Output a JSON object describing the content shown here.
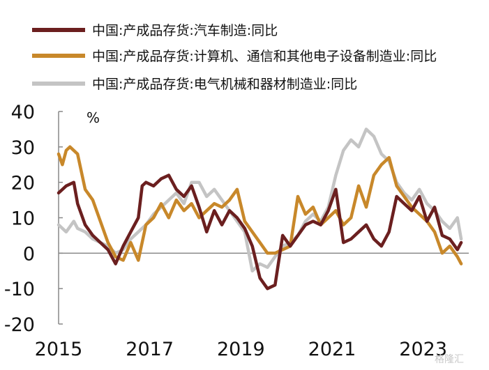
{
  "chart_data": {
    "type": "line",
    "unit_label": "%",
    "ylim": [
      -20,
      40
    ],
    "yticks": [
      -20,
      -10,
      0,
      10,
      20,
      30,
      40
    ],
    "xticks": [
      "2015",
      "2017",
      "2019",
      "2021",
      "2023"
    ],
    "grid": false,
    "legend_position": "top",
    "watermark": "格隆汇",
    "series": [
      {
        "name": "中国:产成品存货:汽车制造:同比",
        "color": "#6b1f1f",
        "points": [
          [
            "2015-01",
            17
          ],
          [
            "2015-03",
            19
          ],
          [
            "2015-05",
            20
          ],
          [
            "2015-06",
            14
          ],
          [
            "2015-08",
            8
          ],
          [
            "2015-10",
            5
          ],
          [
            "2015-12",
            3
          ],
          [
            "2016-02",
            1
          ],
          [
            "2016-04",
            -3
          ],
          [
            "2016-06",
            2
          ],
          [
            "2016-08",
            6
          ],
          [
            "2016-10",
            10
          ],
          [
            "2016-11",
            19
          ],
          [
            "2016-12",
            20
          ],
          [
            "2017-02",
            19
          ],
          [
            "2017-04",
            21
          ],
          [
            "2017-06",
            22
          ],
          [
            "2017-08",
            18
          ],
          [
            "2017-10",
            16
          ],
          [
            "2017-12",
            19
          ],
          [
            "2018-02",
            13
          ],
          [
            "2018-04",
            6
          ],
          [
            "2018-06",
            12
          ],
          [
            "2018-08",
            8
          ],
          [
            "2018-10",
            12
          ],
          [
            "2018-12",
            10
          ],
          [
            "2019-02",
            7
          ],
          [
            "2019-04",
            2
          ],
          [
            "2019-06",
            -7
          ],
          [
            "2019-08",
            -10
          ],
          [
            "2019-10",
            -9
          ],
          [
            "2019-12",
            5
          ],
          [
            "2020-02",
            2
          ],
          [
            "2020-04",
            5
          ],
          [
            "2020-06",
            8
          ],
          [
            "2020-08",
            9
          ],
          [
            "2020-10",
            8
          ],
          [
            "2020-12",
            12
          ],
          [
            "2021-02",
            18
          ],
          [
            "2021-04",
            3
          ],
          [
            "2021-06",
            4
          ],
          [
            "2021-08",
            6
          ],
          [
            "2021-10",
            8
          ],
          [
            "2021-12",
            4
          ],
          [
            "2022-02",
            2
          ],
          [
            "2022-04",
            6
          ],
          [
            "2022-06",
            16
          ],
          [
            "2022-08",
            14
          ],
          [
            "2022-10",
            12
          ],
          [
            "2022-12",
            16
          ],
          [
            "2023-02",
            9
          ],
          [
            "2023-04",
            13
          ],
          [
            "2023-06",
            5
          ],
          [
            "2023-08",
            4
          ],
          [
            "2023-10",
            1
          ],
          [
            "2023-11",
            3
          ]
        ]
      },
      {
        "name": "中国:产成品存货:计算机、通信和其他电子设备制造业:同比",
        "color": "#c8882a",
        "points": [
          [
            "2015-01",
            28
          ],
          [
            "2015-02",
            25
          ],
          [
            "2015-03",
            29
          ],
          [
            "2015-04",
            30
          ],
          [
            "2015-06",
            28
          ],
          [
            "2015-08",
            18
          ],
          [
            "2015-10",
            15
          ],
          [
            "2015-12",
            9
          ],
          [
            "2016-02",
            3
          ],
          [
            "2016-04",
            -1
          ],
          [
            "2016-06",
            -2
          ],
          [
            "2016-08",
            3
          ],
          [
            "2016-10",
            -2
          ],
          [
            "2016-12",
            8
          ],
          [
            "2017-02",
            10
          ],
          [
            "2017-04",
            14
          ],
          [
            "2017-06",
            10
          ],
          [
            "2017-08",
            15
          ],
          [
            "2017-10",
            12
          ],
          [
            "2017-12",
            14
          ],
          [
            "2018-02",
            10
          ],
          [
            "2018-04",
            12
          ],
          [
            "2018-06",
            14
          ],
          [
            "2018-08",
            13
          ],
          [
            "2018-10",
            15
          ],
          [
            "2018-12",
            18
          ],
          [
            "2019-02",
            9
          ],
          [
            "2019-04",
            6
          ],
          [
            "2019-06",
            3
          ],
          [
            "2019-08",
            0
          ],
          [
            "2019-10",
            0
          ],
          [
            "2019-12",
            1
          ],
          [
            "2020-02",
            2
          ],
          [
            "2020-04",
            16
          ],
          [
            "2020-06",
            11
          ],
          [
            "2020-08",
            13
          ],
          [
            "2020-10",
            8
          ],
          [
            "2020-12",
            10
          ],
          [
            "2021-02",
            12
          ],
          [
            "2021-04",
            8
          ],
          [
            "2021-06",
            10
          ],
          [
            "2021-08",
            19
          ],
          [
            "2021-10",
            13
          ],
          [
            "2021-12",
            22
          ],
          [
            "2022-02",
            25
          ],
          [
            "2022-04",
            27
          ],
          [
            "2022-06",
            19
          ],
          [
            "2022-08",
            16
          ],
          [
            "2022-10",
            13
          ],
          [
            "2022-12",
            11
          ],
          [
            "2023-02",
            9
          ],
          [
            "2023-04",
            6
          ],
          [
            "2023-06",
            0
          ],
          [
            "2023-08",
            2
          ],
          [
            "2023-10",
            -1
          ],
          [
            "2023-11",
            -3
          ]
        ]
      },
      {
        "name": "中国:产成品存货:电气机械和器材制造业:同比",
        "color": "#c4c4c4",
        "points": [
          [
            "2015-01",
            8
          ],
          [
            "2015-03",
            6
          ],
          [
            "2015-05",
            9
          ],
          [
            "2015-06",
            7
          ],
          [
            "2015-08",
            6
          ],
          [
            "2015-10",
            4
          ],
          [
            "2015-12",
            3
          ],
          [
            "2016-02",
            2
          ],
          [
            "2016-04",
            0
          ],
          [
            "2016-06",
            1
          ],
          [
            "2016-08",
            4
          ],
          [
            "2016-10",
            6
          ],
          [
            "2016-12",
            8
          ],
          [
            "2017-02",
            11
          ],
          [
            "2017-04",
            13
          ],
          [
            "2017-06",
            15
          ],
          [
            "2017-08",
            17
          ],
          [
            "2017-10",
            14
          ],
          [
            "2017-12",
            20
          ],
          [
            "2018-02",
            20
          ],
          [
            "2018-04",
            16
          ],
          [
            "2018-06",
            18
          ],
          [
            "2018-08",
            15
          ],
          [
            "2018-10",
            12
          ],
          [
            "2018-12",
            9
          ],
          [
            "2019-02",
            6
          ],
          [
            "2019-04",
            -5
          ],
          [
            "2019-06",
            -3
          ],
          [
            "2019-08",
            -4
          ],
          [
            "2019-10",
            -1
          ],
          [
            "2019-12",
            2
          ],
          [
            "2020-02",
            3
          ],
          [
            "2020-04",
            5
          ],
          [
            "2020-06",
            9
          ],
          [
            "2020-08",
            11
          ],
          [
            "2020-10",
            9
          ],
          [
            "2020-12",
            13
          ],
          [
            "2021-02",
            22
          ],
          [
            "2021-04",
            29
          ],
          [
            "2021-06",
            32
          ],
          [
            "2021-08",
            30
          ],
          [
            "2021-10",
            35
          ],
          [
            "2021-12",
            33
          ],
          [
            "2022-02",
            28
          ],
          [
            "2022-04",
            26
          ],
          [
            "2022-06",
            20
          ],
          [
            "2022-08",
            17
          ],
          [
            "2022-10",
            15
          ],
          [
            "2022-12",
            18
          ],
          [
            "2023-02",
            14
          ],
          [
            "2023-04",
            12
          ],
          [
            "2023-06",
            9
          ],
          [
            "2023-08",
            7
          ],
          [
            "2023-10",
            10
          ],
          [
            "2023-11",
            4
          ]
        ]
      }
    ]
  }
}
